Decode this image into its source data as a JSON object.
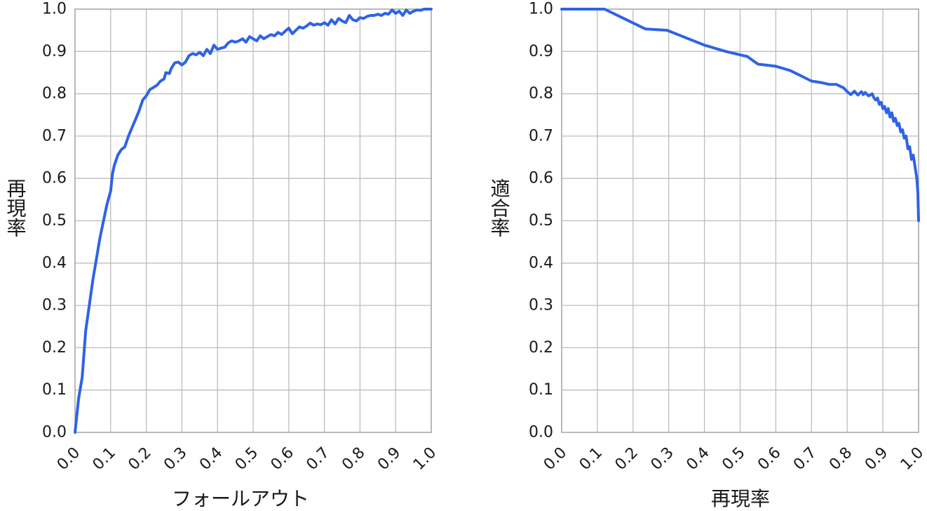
{
  "chart_data": [
    {
      "type": "line",
      "xlabel": "フォールアウト",
      "ylabel": "再現率",
      "xlim": [
        0,
        1
      ],
      "ylim": [
        0,
        1
      ],
      "x_ticks": [
        "0.0",
        "0.1",
        "0.2",
        "0.3",
        "0.4",
        "0.5",
        "0.6",
        "0.7",
        "0.8",
        "0.9",
        "1.0"
      ],
      "y_ticks": [
        "0.0",
        "0.1",
        "0.2",
        "0.3",
        "0.4",
        "0.5",
        "0.6",
        "0.7",
        "0.8",
        "0.9",
        "1.0"
      ],
      "grid": true,
      "color": "#2f63e6",
      "series": [
        {
          "points": [
            [
              0.0,
              0.0
            ],
            [
              0.01,
              0.08
            ],
            [
              0.02,
              0.13
            ],
            [
              0.03,
              0.24
            ],
            [
              0.04,
              0.3
            ],
            [
              0.05,
              0.36
            ],
            [
              0.06,
              0.41
            ],
            [
              0.07,
              0.46
            ],
            [
              0.08,
              0.5
            ],
            [
              0.09,
              0.54
            ],
            [
              0.1,
              0.57
            ],
            [
              0.105,
              0.61
            ],
            [
              0.11,
              0.63
            ],
            [
              0.12,
              0.655
            ],
            [
              0.13,
              0.668
            ],
            [
              0.14,
              0.675
            ],
            [
              0.15,
              0.7
            ],
            [
              0.16,
              0.72
            ],
            [
              0.17,
              0.74
            ],
            [
              0.18,
              0.76
            ],
            [
              0.19,
              0.785
            ],
            [
              0.2,
              0.795
            ],
            [
              0.21,
              0.81
            ],
            [
              0.22,
              0.815
            ],
            [
              0.23,
              0.82
            ],
            [
              0.24,
              0.83
            ],
            [
              0.25,
              0.835
            ],
            [
              0.255,
              0.85
            ],
            [
              0.265,
              0.848
            ],
            [
              0.27,
              0.86
            ],
            [
              0.28,
              0.873
            ],
            [
              0.29,
              0.875
            ],
            [
              0.3,
              0.868
            ],
            [
              0.31,
              0.875
            ],
            [
              0.32,
              0.89
            ],
            [
              0.33,
              0.895
            ],
            [
              0.34,
              0.892
            ],
            [
              0.35,
              0.898
            ],
            [
              0.36,
              0.89
            ],
            [
              0.37,
              0.905
            ],
            [
              0.38,
              0.895
            ],
            [
              0.39,
              0.915
            ],
            [
              0.4,
              0.905
            ],
            [
              0.41,
              0.908
            ],
            [
              0.42,
              0.91
            ],
            [
              0.43,
              0.92
            ],
            [
              0.44,
              0.925
            ],
            [
              0.45,
              0.922
            ],
            [
              0.46,
              0.925
            ],
            [
              0.47,
              0.93
            ],
            [
              0.48,
              0.922
            ],
            [
              0.49,
              0.935
            ],
            [
              0.5,
              0.93
            ],
            [
              0.51,
              0.925
            ],
            [
              0.52,
              0.937
            ],
            [
              0.53,
              0.93
            ],
            [
              0.54,
              0.935
            ],
            [
              0.55,
              0.94
            ],
            [
              0.56,
              0.937
            ],
            [
              0.57,
              0.945
            ],
            [
              0.58,
              0.94
            ],
            [
              0.59,
              0.948
            ],
            [
              0.6,
              0.955
            ],
            [
              0.61,
              0.942
            ],
            [
              0.62,
              0.95
            ],
            [
              0.63,
              0.958
            ],
            [
              0.64,
              0.955
            ],
            [
              0.65,
              0.96
            ],
            [
              0.66,
              0.967
            ],
            [
              0.67,
              0.962
            ],
            [
              0.68,
              0.965
            ],
            [
              0.69,
              0.963
            ],
            [
              0.7,
              0.968
            ],
            [
              0.71,
              0.962
            ],
            [
              0.72,
              0.975
            ],
            [
              0.73,
              0.965
            ],
            [
              0.74,
              0.978
            ],
            [
              0.75,
              0.972
            ],
            [
              0.76,
              0.968
            ],
            [
              0.77,
              0.985
            ],
            [
              0.78,
              0.975
            ],
            [
              0.79,
              0.972
            ],
            [
              0.8,
              0.98
            ],
            [
              0.81,
              0.978
            ],
            [
              0.82,
              0.983
            ],
            [
              0.83,
              0.985
            ],
            [
              0.84,
              0.985
            ],
            [
              0.85,
              0.988
            ],
            [
              0.86,
              0.985
            ],
            [
              0.87,
              0.99
            ],
            [
              0.88,
              0.988
            ],
            [
              0.89,
              0.998
            ],
            [
              0.9,
              0.99
            ],
            [
              0.91,
              0.995
            ],
            [
              0.92,
              0.985
            ],
            [
              0.93,
              0.998
            ],
            [
              0.94,
              0.99
            ],
            [
              0.95,
              0.995
            ],
            [
              0.96,
              0.998
            ],
            [
              0.97,
              0.997
            ],
            [
              0.98,
              1.0
            ],
            [
              0.99,
              1.0
            ],
            [
              1.0,
              1.0
            ]
          ]
        }
      ]
    },
    {
      "type": "line",
      "xlabel": "再現率",
      "ylabel": "適合率",
      "xlim": [
        0,
        1
      ],
      "ylim": [
        0,
        1
      ],
      "x_ticks": [
        "0.0",
        "0.1",
        "0.2",
        "0.3",
        "0.4",
        "0.5",
        "0.6",
        "0.7",
        "0.8",
        "0.9",
        "1.0"
      ],
      "y_ticks": [
        "0.0",
        "0.1",
        "0.2",
        "0.3",
        "0.4",
        "0.5",
        "0.6",
        "0.7",
        "0.8",
        "0.9",
        "1.0"
      ],
      "grid": true,
      "color": "#2f63e6",
      "series": [
        {
          "points": [
            [
              0.0,
              1.0
            ],
            [
              0.12,
              1.0
            ],
            [
              0.235,
              0.953
            ],
            [
              0.295,
              0.95
            ],
            [
              0.34,
              0.935
            ],
            [
              0.4,
              0.915
            ],
            [
              0.46,
              0.9
            ],
            [
              0.52,
              0.888
            ],
            [
              0.55,
              0.87
            ],
            [
              0.6,
              0.865
            ],
            [
              0.64,
              0.855
            ],
            [
              0.7,
              0.83
            ],
            [
              0.73,
              0.826
            ],
            [
              0.75,
              0.822
            ],
            [
              0.77,
              0.822
            ],
            [
              0.79,
              0.814
            ],
            [
              0.8,
              0.805
            ],
            [
              0.81,
              0.798
            ],
            [
              0.82,
              0.806
            ],
            [
              0.83,
              0.797
            ],
            [
              0.84,
              0.805
            ],
            [
              0.845,
              0.798
            ],
            [
              0.85,
              0.803
            ],
            [
              0.86,
              0.795
            ],
            [
              0.87,
              0.8
            ],
            [
              0.875,
              0.79
            ],
            [
              0.88,
              0.785
            ],
            [
              0.885,
              0.79
            ],
            [
              0.89,
              0.775
            ],
            [
              0.895,
              0.78
            ],
            [
              0.9,
              0.765
            ],
            [
              0.905,
              0.77
            ],
            [
              0.91,
              0.755
            ],
            [
              0.915,
              0.765
            ],
            [
              0.92,
              0.745
            ],
            [
              0.925,
              0.755
            ],
            [
              0.93,
              0.735
            ],
            [
              0.935,
              0.742
            ],
            [
              0.94,
              0.725
            ],
            [
              0.945,
              0.73
            ],
            [
              0.95,
              0.71
            ],
            [
              0.955,
              0.715
            ],
            [
              0.96,
              0.695
            ],
            [
              0.965,
              0.7
            ],
            [
              0.97,
              0.67
            ],
            [
              0.975,
              0.675
            ],
            [
              0.98,
              0.645
            ],
            [
              0.985,
              0.655
            ],
            [
              0.99,
              0.628
            ],
            [
              0.995,
              0.6
            ],
            [
              0.998,
              0.565
            ],
            [
              1.0,
              0.5
            ]
          ]
        }
      ]
    }
  ]
}
